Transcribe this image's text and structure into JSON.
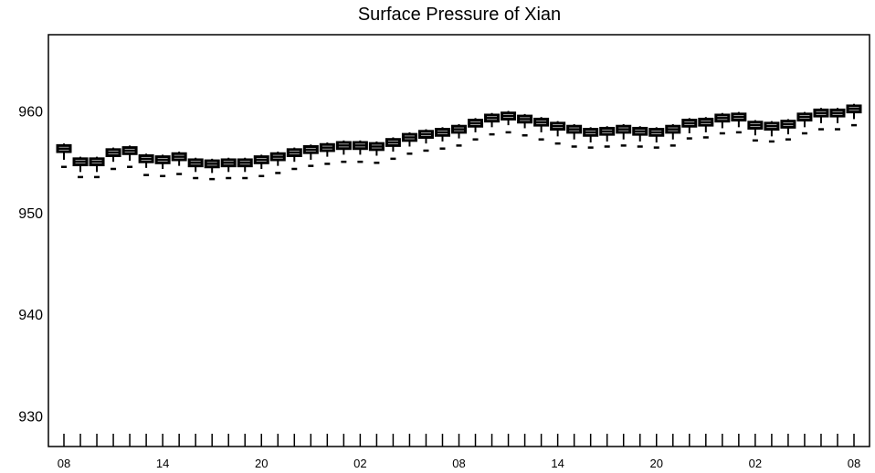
{
  "chart_data": {
    "type": "box",
    "title": "Surface Pressure of Xian",
    "xlabel": "",
    "ylabel": "",
    "ylim": [
      927,
      967.5
    ],
    "y_ticks": [
      930,
      940,
      950,
      960
    ],
    "x_tick_labels": [
      "08",
      "14",
      "20",
      "02",
      "08",
      "14",
      "20",
      "02",
      "08"
    ],
    "x_tick_positions": [
      0,
      6,
      12,
      18,
      24,
      30,
      36,
      42,
      48
    ],
    "grid": false,
    "legend": "none",
    "colors": {
      "box": "#000000",
      "background": "#ffffff"
    },
    "series": [
      {
        "x": [
          0,
          1,
          2,
          3,
          4,
          5,
          6,
          7,
          8,
          9,
          10,
          11,
          12,
          13,
          14,
          15,
          16,
          17,
          18,
          19,
          20,
          21,
          22,
          23,
          24,
          25,
          26,
          27,
          28,
          29,
          30,
          31,
          32,
          33,
          34,
          35,
          36,
          37,
          38,
          39,
          40,
          41,
          42,
          43,
          44,
          45,
          46,
          47,
          48
        ],
        "median": [
          956.3,
          955.0,
          955.0,
          955.9,
          956.1,
          955.3,
          955.2,
          955.5,
          954.9,
          954.8,
          954.9,
          954.9,
          955.2,
          955.5,
          955.9,
          956.2,
          956.4,
          956.6,
          956.6,
          956.5,
          956.9,
          957.4,
          957.7,
          957.9,
          958.2,
          958.8,
          959.3,
          959.5,
          959.2,
          958.9,
          958.5,
          958.2,
          957.9,
          958.0,
          958.2,
          958.0,
          957.9,
          958.2,
          958.8,
          958.9,
          959.3,
          959.4,
          958.6,
          958.5,
          958.7,
          959.4,
          959.8,
          959.8,
          960.2
        ],
        "q1": [
          956.0,
          954.7,
          954.7,
          955.6,
          955.8,
          955.0,
          954.9,
          955.2,
          954.6,
          954.5,
          954.6,
          954.6,
          954.9,
          955.2,
          955.6,
          955.9,
          956.1,
          956.3,
          956.3,
          956.2,
          956.6,
          957.1,
          957.4,
          957.6,
          957.9,
          958.5,
          959.0,
          959.2,
          958.9,
          958.6,
          958.2,
          957.9,
          957.6,
          957.7,
          957.9,
          957.7,
          957.6,
          957.9,
          958.5,
          958.6,
          959.0,
          959.1,
          958.3,
          958.2,
          958.4,
          959.1,
          959.5,
          959.5,
          959.9
        ],
        "q3": [
          956.6,
          955.3,
          955.3,
          956.2,
          956.4,
          955.6,
          955.5,
          955.8,
          955.2,
          955.1,
          955.2,
          955.2,
          955.5,
          955.8,
          956.2,
          956.5,
          956.7,
          956.9,
          956.9,
          956.8,
          957.2,
          957.7,
          958.0,
          958.2,
          958.5,
          959.1,
          959.6,
          959.8,
          959.5,
          959.2,
          958.8,
          958.5,
          958.2,
          958.3,
          958.5,
          958.3,
          958.2,
          958.5,
          959.1,
          959.2,
          959.6,
          959.7,
          958.9,
          958.8,
          959.0,
          959.7,
          960.1,
          960.1,
          960.5
        ],
        "whisker_low": [
          955.2,
          954.0,
          954.0,
          955.0,
          955.1,
          954.4,
          954.3,
          954.6,
          954.0,
          953.9,
          954.0,
          954.0,
          954.3,
          954.6,
          955.0,
          955.2,
          955.5,
          955.7,
          955.7,
          955.6,
          956.0,
          956.5,
          956.8,
          957.0,
          957.3,
          957.9,
          958.4,
          958.6,
          958.3,
          957.9,
          957.5,
          957.2,
          956.9,
          957.0,
          957.2,
          957.0,
          956.9,
          957.2,
          957.8,
          957.9,
          958.3,
          958.4,
          957.6,
          957.5,
          957.7,
          958.4,
          958.8,
          958.8,
          959.2
        ],
        "whisker_high": [
          956.8,
          955.5,
          955.5,
          956.4,
          956.6,
          955.8,
          955.7,
          956.0,
          955.4,
          955.3,
          955.4,
          955.4,
          955.7,
          956.0,
          956.4,
          956.7,
          956.9,
          957.1,
          957.1,
          957.0,
          957.4,
          957.9,
          958.2,
          958.4,
          958.7,
          959.3,
          959.8,
          960.0,
          959.7,
          959.4,
          959.0,
          958.7,
          958.4,
          958.5,
          958.7,
          958.5,
          958.4,
          958.7,
          959.3,
          959.4,
          959.8,
          959.9,
          959.1,
          959.0,
          959.2,
          959.9,
          960.3,
          960.3,
          960.7
        ],
        "outlier_low": [
          954.5,
          953.5,
          953.5,
          954.3,
          954.5,
          953.7,
          953.6,
          953.8,
          953.4,
          953.3,
          953.4,
          953.4,
          953.6,
          953.9,
          954.3,
          954.6,
          954.8,
          955.0,
          955.0,
          954.9,
          955.3,
          955.8,
          956.1,
          956.3,
          956.6,
          957.2,
          957.7,
          957.9,
          957.6,
          957.2,
          956.8,
          956.5,
          956.4,
          956.5,
          956.6,
          956.5,
          956.4,
          956.6,
          957.3,
          957.4,
          957.8,
          957.9,
          957.1,
          957.0,
          957.2,
          957.8,
          958.2,
          958.2,
          958.6
        ]
      }
    ]
  }
}
